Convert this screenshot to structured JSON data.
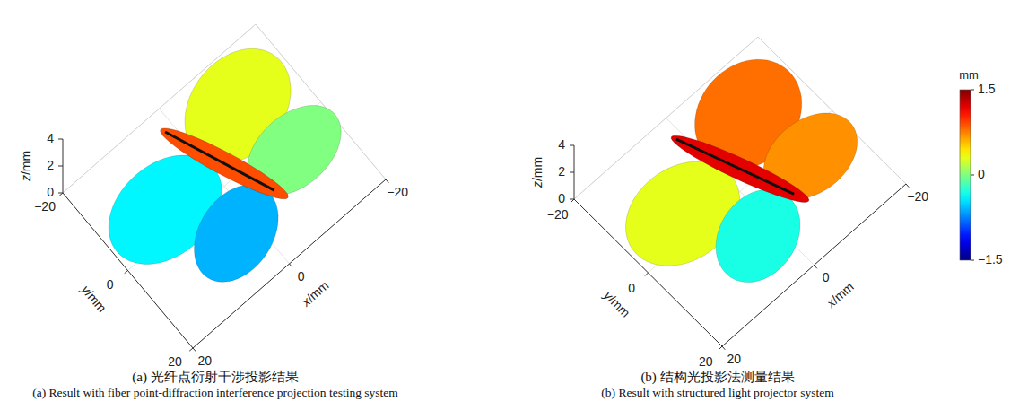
{
  "chart_data": [
    {
      "type": "surface3d",
      "title": "(a) 光纤点衍射干涉投影结果",
      "subtitle": "(a) Result with fiber point-diffraction interference projection testing system",
      "xlabel": "x/mm",
      "ylabel": "y/mm",
      "zlabel": "z/mm",
      "xlim": [
        -20,
        20
      ],
      "ylim": [
        -20,
        20
      ],
      "zlim": [
        0,
        4
      ],
      "xticks": [
        {
          "value": -20,
          "label": "−20"
        },
        0,
        20
      ],
      "yticks": [
        {
          "value": -20,
          "label": "−20"
        },
        0,
        20
      ],
      "zticks": [
        0,
        2,
        4
      ],
      "grid": true,
      "wing_values": [
        0.3,
        -0.4,
        0.0,
        -0.6
      ],
      "body_value": 0.9
    },
    {
      "type": "surface3d",
      "title": "(b) 结构光投影法测量结果",
      "subtitle": "(b) Result with structured light projector system",
      "xlabel": "x/mm",
      "ylabel": "y/mm",
      "zlabel": "z/mm",
      "xlim": [
        -20,
        20
      ],
      "ylim": [
        -20,
        20
      ],
      "zlim": [
        0,
        4
      ],
      "xticks": [
        {
          "value": -20,
          "label": "−20"
        },
        0,
        20
      ],
      "yticks": [
        {
          "value": -20,
          "label": "−20"
        },
        0,
        20
      ],
      "zticks": [
        0,
        2,
        4
      ],
      "grid": true,
      "wing_values": [
        0.8,
        0.3,
        0.7,
        -0.3
      ],
      "body_value": 1.2,
      "colorbar": {
        "label": "mm",
        "range": [
          -1.5,
          1.5
        ],
        "ticks": [
          {
            "value": -1.5,
            "label": "−1.5"
          },
          0,
          1.5
        ]
      }
    }
  ]
}
